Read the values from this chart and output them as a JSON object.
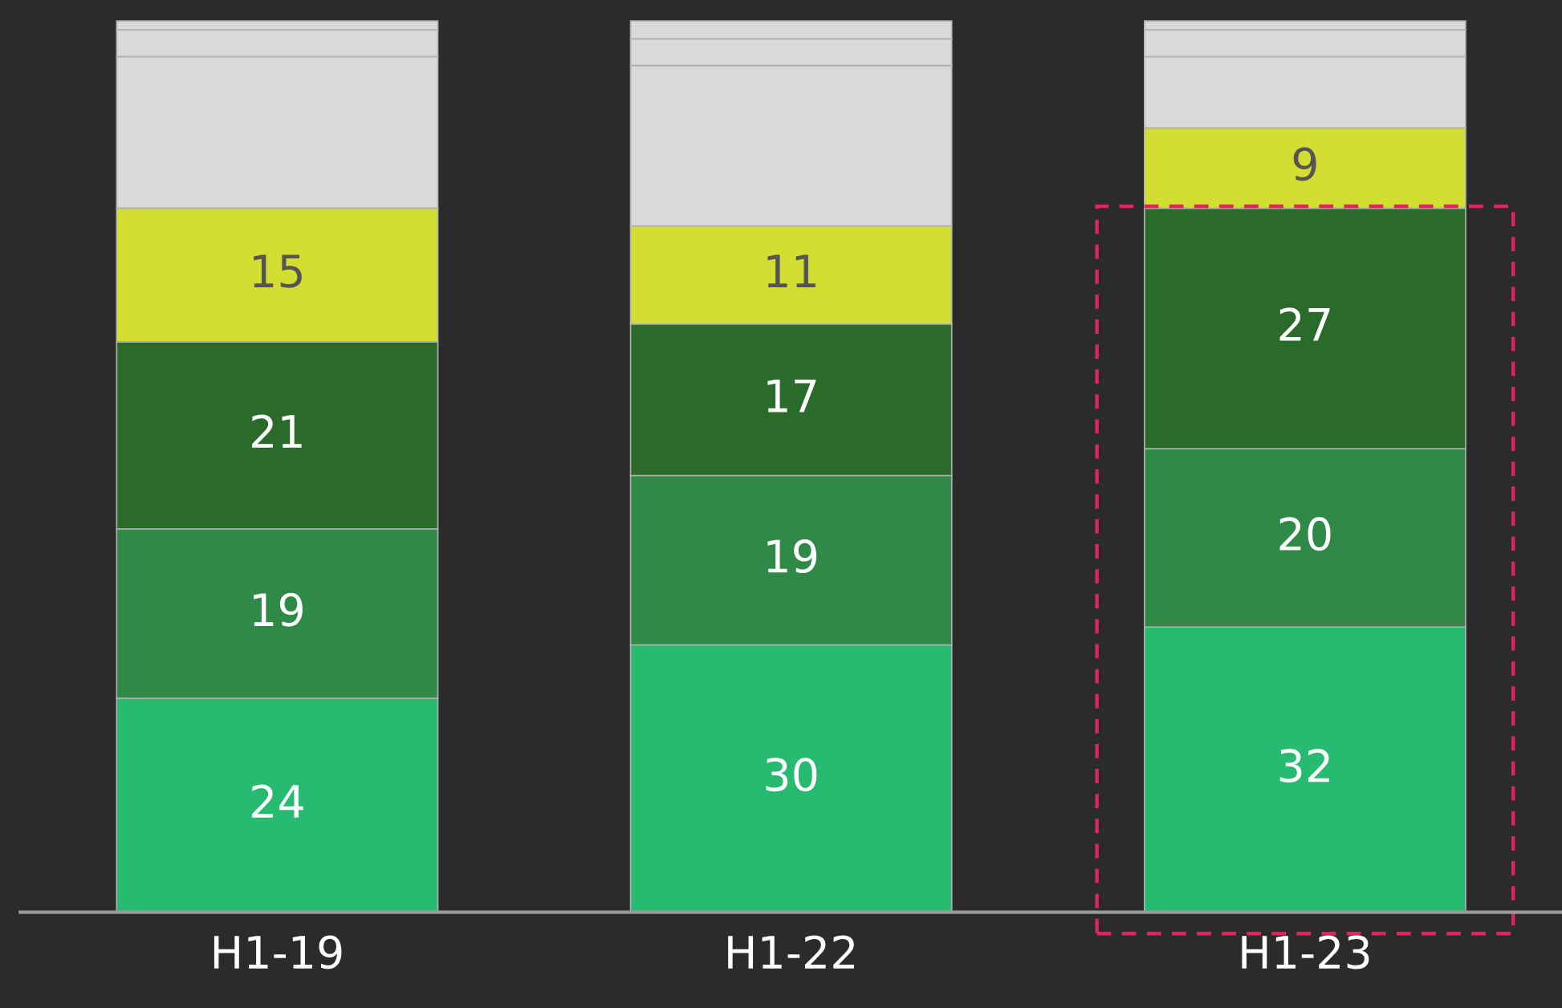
{
  "chart_data": {
    "type": "bar",
    "stacked": true,
    "categories": [
      "H1-19",
      "H1-22",
      "H1-23"
    ],
    "series": [
      {
        "color": "#27bb72",
        "values": [
          24,
          30,
          32
        ],
        "value_labels": [
          "24",
          "30",
          "32"
        ]
      },
      {
        "color": "#2f8a47",
        "values": [
          19,
          19,
          20
        ],
        "value_labels": [
          "19",
          "19",
          "20"
        ]
      },
      {
        "color": "#2a6a2a",
        "values": [
          21,
          17,
          27
        ],
        "value_labels": [
          "21",
          "17",
          "27"
        ]
      },
      {
        "color": "#d4de32",
        "values": [
          15,
          11,
          9
        ],
        "value_labels": [
          "15",
          "11",
          "9"
        ]
      },
      {
        "color": "#d9d9d9",
        "values": [
          17,
          18,
          8
        ]
      },
      {
        "color": "#d9d9d9",
        "values": [
          3,
          3,
          3
        ]
      },
      {
        "color": "#d9d9d9",
        "values": [
          1,
          2,
          1
        ]
      }
    ]
  }
}
